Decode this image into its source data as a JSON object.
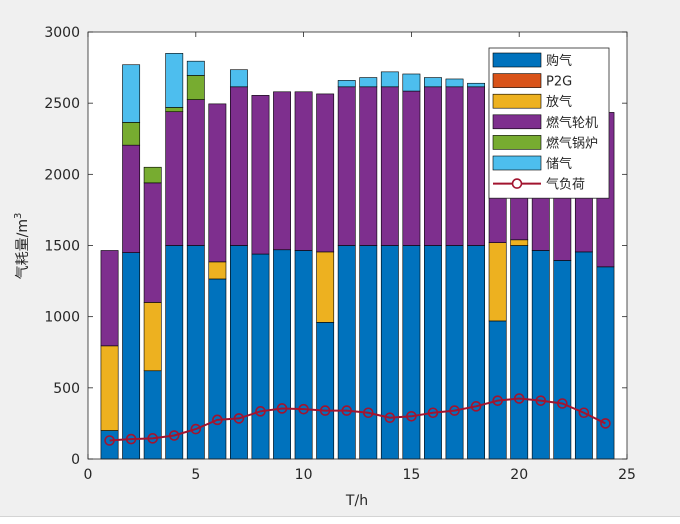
{
  "chart_data": {
    "type": "bar",
    "stacked": true,
    "title": "",
    "xlabel": "T/h",
    "ylabel": "气耗量/m",
    "ylabel_superscript": "3",
    "xlim": [
      0,
      25
    ],
    "ylim": [
      0,
      3000
    ],
    "xticks": [
      0,
      5,
      10,
      15,
      20,
      25
    ],
    "yticks": [
      0,
      500,
      1000,
      1500,
      2000,
      2500,
      3000
    ],
    "legend_position": "top-right",
    "x": [
      1,
      2,
      3,
      4,
      5,
      6,
      7,
      8,
      9,
      10,
      11,
      12,
      13,
      14,
      15,
      16,
      17,
      18,
      19,
      20,
      21,
      22,
      23,
      24
    ],
    "series": [
      {
        "name": "购气",
        "color": "#0072BD",
        "values": [
          200,
          1450,
          620,
          1500,
          1500,
          1265,
          1500,
          1440,
          1470,
          1465,
          960,
          1500,
          1500,
          1500,
          1500,
          1500,
          1500,
          1500,
          970,
          1500,
          1465,
          1395,
          1455,
          1350
        ]
      },
      {
        "name": "P2G",
        "color": "#D95319",
        "values": [
          0,
          0,
          0,
          0,
          0,
          0,
          0,
          0,
          0,
          0,
          0,
          0,
          0,
          0,
          0,
          0,
          0,
          0,
          0,
          0,
          0,
          0,
          0,
          0
        ]
      },
      {
        "name": "放气",
        "color": "#EDB120",
        "values": [
          595,
          0,
          480,
          0,
          0,
          120,
          0,
          0,
          0,
          0,
          495,
          0,
          0,
          0,
          0,
          0,
          0,
          0,
          550,
          40,
          0,
          0,
          0,
          0
        ]
      },
      {
        "name": "燃气轮机",
        "color": "#7E2F8E",
        "values": [
          670,
          755,
          840,
          940,
          1025,
          1110,
          1115,
          1115,
          1110,
          1115,
          1110,
          1115,
          1115,
          1115,
          1085,
          1115,
          1115,
          1115,
          1080,
          1080,
          1110,
          1120,
          1110,
          1085
        ]
      },
      {
        "name": "燃气锅炉",
        "color": "#77AC30",
        "values": [
          0,
          160,
          110,
          30,
          170,
          0,
          0,
          0,
          0,
          0,
          0,
          0,
          0,
          0,
          0,
          0,
          0,
          0,
          0,
          0,
          0,
          0,
          0,
          0
        ]
      },
      {
        "name": "储气",
        "color": "#4DBEEE",
        "values": [
          0,
          405,
          0,
          380,
          100,
          0,
          120,
          0,
          0,
          0,
          0,
          45,
          65,
          105,
          120,
          65,
          55,
          25,
          0,
          0,
          0,
          0,
          0,
          0
        ]
      }
    ],
    "line_series": {
      "name": "气负荷",
      "color": "#A2142F",
      "values": [
        130,
        140,
        145,
        165,
        210,
        275,
        285,
        335,
        355,
        350,
        340,
        340,
        325,
        290,
        300,
        325,
        340,
        370,
        410,
        425,
        410,
        390,
        325,
        250
      ]
    }
  }
}
